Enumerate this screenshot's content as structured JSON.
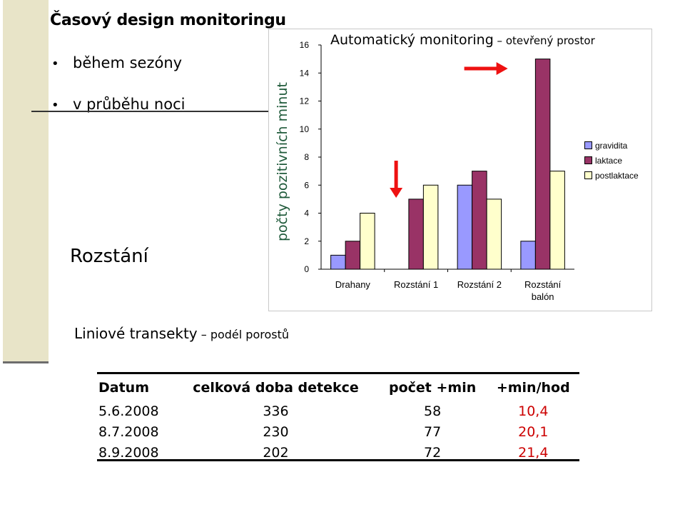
{
  "slide": {
    "title": "Časový design monitoringu",
    "bullets": [
      "během sezóny",
      "v průběhu noci"
    ],
    "bullet_glyph": "•",
    "place": "Rozstání",
    "transect": {
      "main": "Liniové transekty",
      "sub": " – podél porostů"
    }
  },
  "chart_data": {
    "type": "bar",
    "title": "Automatický monitoring",
    "subtitle": " – otevřený prostor",
    "ylabel": "počty pozitivních minut",
    "categories": [
      "Drahany",
      "Rozstání 1",
      "Rozstání 2",
      "Rozstání balón"
    ],
    "series": [
      {
        "name": "gravidita",
        "values": [
          1,
          0,
          6,
          2
        ],
        "color": "#9999ff"
      },
      {
        "name": "laktace",
        "values": [
          2,
          5,
          7,
          15
        ],
        "color": "#993366"
      },
      {
        "name": "postlaktace",
        "values": [
          4,
          6,
          5,
          7
        ],
        "color": "#ffffcc"
      }
    ],
    "ylim": [
      0,
      16
    ],
    "yticks": [
      0,
      2,
      4,
      6,
      8,
      10,
      12,
      14,
      16
    ],
    "legend_position": "right",
    "grid": false,
    "annotations": [
      {
        "type": "arrow-down",
        "color": "#ee1111",
        "category": "Rozstání 1"
      },
      {
        "type": "arrow-right",
        "color": "#ee1111",
        "category": "Rozstání balón"
      }
    ]
  },
  "table": {
    "headers": [
      "Datum",
      "celková doba detekce",
      "počet +min",
      "+min/hod"
    ],
    "rows": [
      [
        "5.6.2008",
        "336",
        "58",
        "10,4"
      ],
      [
        "8.7.2008",
        "230",
        "77",
        "20,1"
      ],
      [
        "8.9.2008",
        "202",
        "72",
        "21,4"
      ]
    ]
  }
}
